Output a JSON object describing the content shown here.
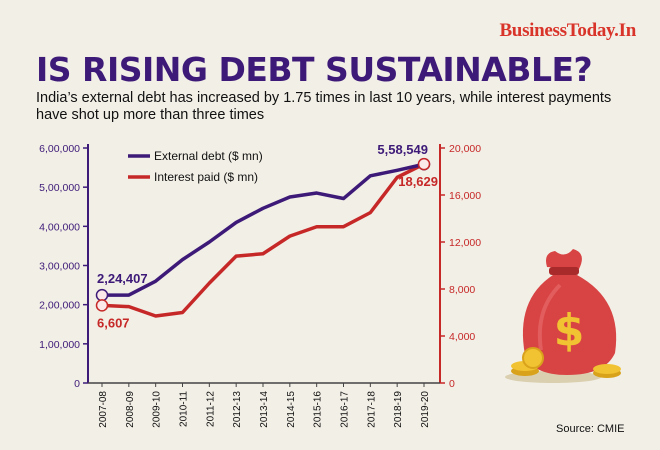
{
  "brand": "BusinessToday.In",
  "headline": "IS RISING DEBT SUSTAINABLE?",
  "subtitle": "India’s external debt has increased by 1.75 times in last 10 years, while interest payments have shot up more than three times",
  "source": "Source: CMIE",
  "colors": {
    "background": "#f2efe6",
    "headline": "#3d1a78",
    "brand": "#d9342a",
    "series_debt": "#3d1a78",
    "series_interest": "#c62828",
    "bag": "#d84343"
  },
  "chart_data": {
    "type": "line",
    "categories": [
      "2007-08",
      "2008-09",
      "2009-10",
      "2010-11",
      "2011-12",
      "2012-13",
      "2013-14",
      "2014-15",
      "2015-16",
      "2016-17",
      "2017-18",
      "2018-19",
      "2019-20"
    ],
    "series": [
      {
        "name": "External debt ($ mn)",
        "axis": "left",
        "values": [
          224407,
          224500,
          260000,
          315000,
          360000,
          410000,
          446000,
          475000,
          485000,
          471000,
          529000,
          543000,
          558549
        ]
      },
      {
        "name": "Interest paid ($ mn)",
        "axis": "right",
        "values": [
          6607,
          6500,
          5700,
          6000,
          8500,
          10800,
          11000,
          12500,
          13300,
          13300,
          14500,
          17500,
          18629
        ]
      }
    ],
    "y_left": {
      "ticks": [
        "6,00,000",
        "5,00,000",
        "4,00,000",
        "3,00,000",
        "2,00,000",
        "1,00,000",
        "0"
      ],
      "ylim": [
        0,
        600000
      ]
    },
    "y_right": {
      "ticks": [
        "20,000",
        "16,000",
        "12,000",
        "8,000",
        "4,000",
        "0"
      ],
      "ylim": [
        0,
        20000
      ]
    },
    "annotations": {
      "debt_start": "2,24,407",
      "debt_end": "5,58,549",
      "interest_start": "6,607",
      "interest_end": "18,629"
    },
    "legend_position": "top-left",
    "grid": false
  }
}
